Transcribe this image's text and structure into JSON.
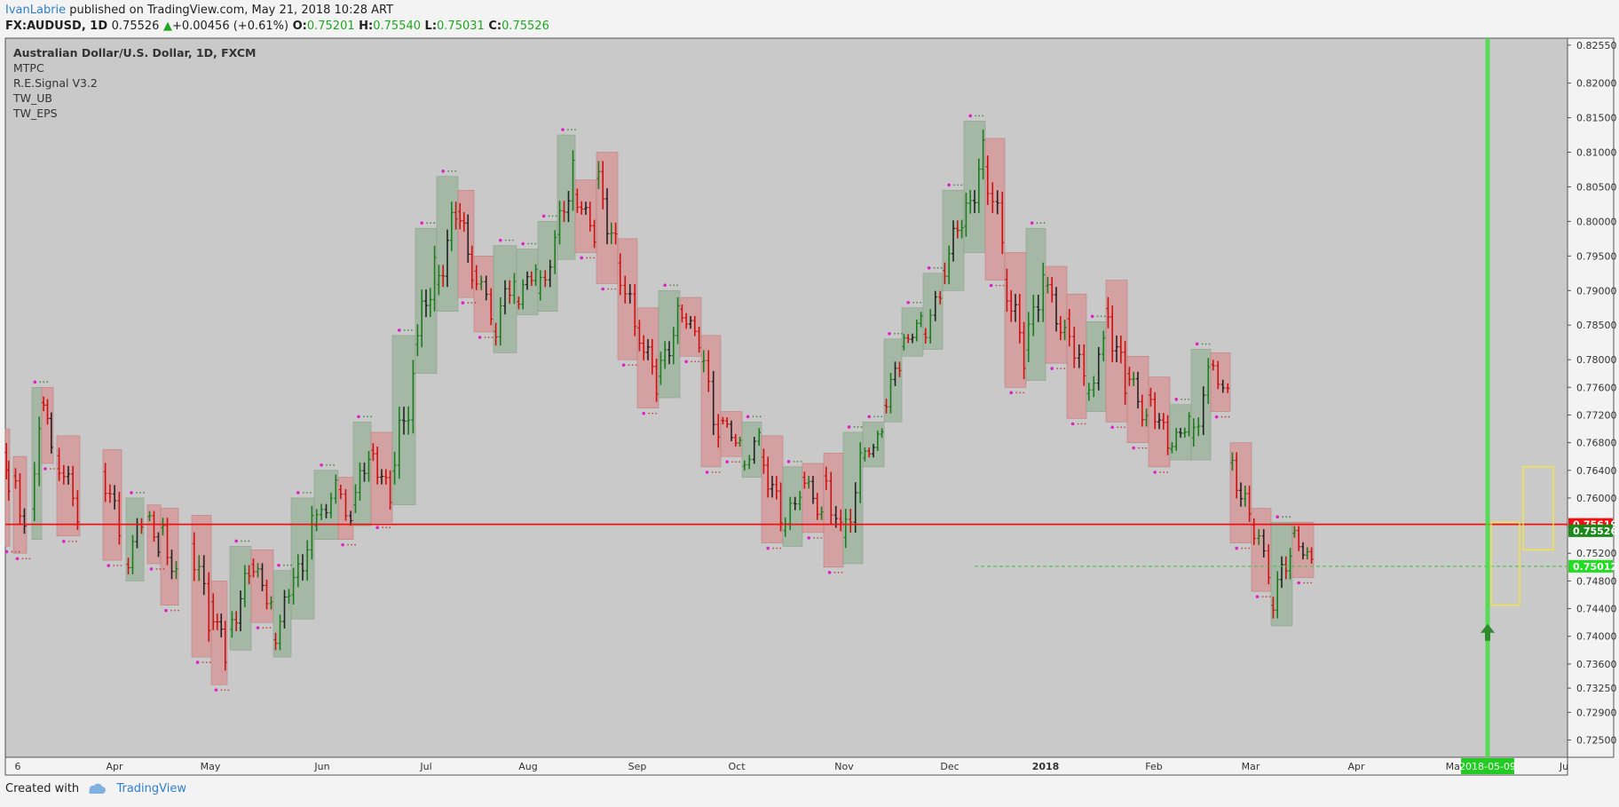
{
  "header": {
    "user": "IvanLabrie",
    "published_text": "published on TradingView.com, May 21, 2018 10:28 ART",
    "symbol": "FX:AUDUSD, 1D",
    "price": "0.75526",
    "change": "+0.00456 (+0.61%)",
    "o_label": "O:",
    "o": "0.75201",
    "h_label": "H:",
    "h": "0.75540",
    "l_label": "L:",
    "l": "0.75031",
    "c_label": "C:",
    "c": "0.75526"
  },
  "legend": {
    "title": "Australian Dollar/U.S. Dollar, 1D, FXCM",
    "indicators": [
      "MTPC",
      "R.E.Signal V3.2",
      "TW_UB",
      "TW_EPS"
    ]
  },
  "footer": {
    "created_with": "Created with",
    "brand": "TradingView"
  },
  "colors": {
    "pane_bg": "#c9c9c9",
    "bull": "#1e7a1e",
    "bear": "#cc1111",
    "box_bull": "#9fb59f",
    "box_bear": "#d59a9a",
    "marker": "#e020c8",
    "hline_red": "#ee1111",
    "highlight_green": "#44dd44",
    "yellow_box": "#f3e24c"
  },
  "chart_data": {
    "type": "candlestick",
    "title": "Australian Dollar/U.S. Dollar, 1D, FXCM",
    "ylim": [
      0.7225,
      0.8265
    ],
    "y_ticks": [
      "0.82550",
      "0.82000",
      "0.81500",
      "0.81000",
      "0.80500",
      "0.80000",
      "0.79500",
      "0.79000",
      "0.78500",
      "0.78000",
      "0.77600",
      "0.77200",
      "0.76800",
      "0.76400",
      "0.76000",
      "0.75600",
      "0.75200",
      "0.74800",
      "0.74400",
      "0.74000",
      "0.73600",
      "0.73250",
      "0.72900",
      "0.72500"
    ],
    "x_ticks": [
      "6",
      "Apr",
      "May",
      "Jun",
      "Jul",
      "Aug",
      "Sep",
      "Oct",
      "Nov",
      "Dec",
      "2018",
      "Feb",
      "Mar",
      "Apr",
      "May",
      "Ju"
    ],
    "price_labels": [
      {
        "label": "0.75619",
        "value": 0.75619,
        "color": "#ee1111"
      },
      {
        "label": "0.75526",
        "value": 0.75526,
        "color": "#1a8a1a"
      },
      {
        "label": "0.75012",
        "value": 0.75012,
        "color": "#22dd22"
      }
    ],
    "horizontal_lines": [
      {
        "value": 0.75619,
        "style": "solid",
        "color": "#ee1111"
      },
      {
        "value": 0.75012,
        "style": "dashed",
        "color": "#33cc33"
      }
    ],
    "highlighted_date": "2018-05-09",
    "series": [
      {
        "name": "AUDUSD daily",
        "shape": "rise from 0.748 to 0.810 (Sep), decline to 0.760 (Dec), peak 0.814 (Jan), fall to 0.742 (May)"
      }
    ],
    "swing_boxes": [
      {
        "bull": false,
        "x0": 0,
        "x1": 5,
        "hi": 0.77,
        "lo": 0.753
      },
      {
        "bull": false,
        "x0": 9,
        "x1": 24,
        "hi": 0.766,
        "lo": 0.752
      },
      {
        "bull": true,
        "x0": 30,
        "x1": 41,
        "hi": 0.776,
        "lo": 0.754
      },
      {
        "bull": false,
        "x0": 41,
        "x1": 54,
        "hi": 0.776,
        "lo": 0.765
      },
      {
        "bull": false,
        "x0": 58,
        "x1": 84,
        "hi": 0.769,
        "lo": 0.7545
      },
      {
        "bull": false,
        "x0": 110,
        "x1": 131,
        "hi": 0.767,
        "lo": 0.751
      },
      {
        "bull": true,
        "x0": 136,
        "x1": 156,
        "hi": 0.76,
        "lo": 0.748
      },
      {
        "bull": false,
        "x0": 160,
        "x1": 175,
        "hi": 0.759,
        "lo": 0.7505
      },
      {
        "bull": false,
        "x0": 175,
        "x1": 195,
        "hi": 0.7585,
        "lo": 0.7445
      },
      {
        "bull": false,
        "x0": 210,
        "x1": 232,
        "hi": 0.7575,
        "lo": 0.737
      },
      {
        "bull": false,
        "x0": 232,
        "x1": 250,
        "hi": 0.748,
        "lo": 0.733
      },
      {
        "bull": true,
        "x0": 253,
        "x1": 277,
        "hi": 0.753,
        "lo": 0.738
      },
      {
        "bull": false,
        "x0": 277,
        "x1": 302,
        "hi": 0.7525,
        "lo": 0.742
      },
      {
        "bull": true,
        "x0": 302,
        "x1": 322,
        "hi": 0.7495,
        "lo": 0.737
      },
      {
        "bull": true,
        "x0": 322,
        "x1": 348,
        "hi": 0.76,
        "lo": 0.7425
      },
      {
        "bull": true,
        "x0": 348,
        "x1": 375,
        "hi": 0.764,
        "lo": 0.754
      },
      {
        "bull": false,
        "x0": 375,
        "x1": 392,
        "hi": 0.763,
        "lo": 0.754
      },
      {
        "bull": true,
        "x0": 392,
        "x1": 412,
        "hi": 0.771,
        "lo": 0.756
      },
      {
        "bull": false,
        "x0": 412,
        "x1": 436,
        "hi": 0.7695,
        "lo": 0.7565
      },
      {
        "bull": true,
        "x0": 436,
        "x1": 462,
        "hi": 0.7835,
        "lo": 0.759
      },
      {
        "bull": true,
        "x0": 462,
        "x1": 486,
        "hi": 0.799,
        "lo": 0.778
      },
      {
        "bull": true,
        "x0": 486,
        "x1": 510,
        "hi": 0.8065,
        "lo": 0.787
      },
      {
        "bull": false,
        "x0": 510,
        "x1": 528,
        "hi": 0.8045,
        "lo": 0.789
      },
      {
        "bull": false,
        "x0": 528,
        "x1": 550,
        "hi": 0.795,
        "lo": 0.784
      },
      {
        "bull": true,
        "x0": 550,
        "x1": 576,
        "hi": 0.7965,
        "lo": 0.781
      },
      {
        "bull": true,
        "x0": 576,
        "x1": 600,
        "hi": 0.796,
        "lo": 0.7865
      },
      {
        "bull": true,
        "x0": 600,
        "x1": 622,
        "hi": 0.8,
        "lo": 0.787
      },
      {
        "bull": true,
        "x0": 622,
        "x1": 642,
        "hi": 0.8125,
        "lo": 0.7945
      },
      {
        "bull": false,
        "x0": 642,
        "x1": 666,
        "hi": 0.806,
        "lo": 0.7955
      },
      {
        "bull": false,
        "x0": 666,
        "x1": 690,
        "hi": 0.81,
        "lo": 0.791
      },
      {
        "bull": false,
        "x0": 690,
        "x1": 712,
        "hi": 0.7975,
        "lo": 0.78
      },
      {
        "bull": false,
        "x0": 712,
        "x1": 736,
        "hi": 0.7875,
        "lo": 0.773
      },
      {
        "bull": true,
        "x0": 736,
        "x1": 760,
        "hi": 0.79,
        "lo": 0.7745
      },
      {
        "bull": false,
        "x0": 760,
        "x1": 784,
        "hi": 0.789,
        "lo": 0.7805
      },
      {
        "bull": false,
        "x0": 784,
        "x1": 806,
        "hi": 0.7835,
        "lo": 0.7645
      },
      {
        "bull": false,
        "x0": 806,
        "x1": 830,
        "hi": 0.7725,
        "lo": 0.766
      },
      {
        "bull": true,
        "x0": 830,
        "x1": 852,
        "hi": 0.771,
        "lo": 0.763
      },
      {
        "bull": false,
        "x0": 852,
        "x1": 876,
        "hi": 0.769,
        "lo": 0.7535
      },
      {
        "bull": true,
        "x0": 876,
        "x1": 898,
        "hi": 0.7645,
        "lo": 0.753
      },
      {
        "bull": false,
        "x0": 898,
        "x1": 922,
        "hi": 0.765,
        "lo": 0.755
      },
      {
        "bull": false,
        "x0": 922,
        "x1": 944,
        "hi": 0.7665,
        "lo": 0.75
      },
      {
        "bull": true,
        "x0": 944,
        "x1": 966,
        "hi": 0.7695,
        "lo": 0.7505
      },
      {
        "bull": true,
        "x0": 966,
        "x1": 990,
        "hi": 0.771,
        "lo": 0.7645
      },
      {
        "bull": true,
        "x0": 990,
        "x1": 1010,
        "hi": 0.783,
        "lo": 0.771
      },
      {
        "bull": true,
        "x0": 1010,
        "x1": 1034,
        "hi": 0.7875,
        "lo": 0.7805
      },
      {
        "bull": true,
        "x0": 1034,
        "x1": 1056,
        "hi": 0.7925,
        "lo": 0.7815
      },
      {
        "bull": true,
        "x0": 1056,
        "x1": 1080,
        "hi": 0.8045,
        "lo": 0.79
      },
      {
        "bull": true,
        "x0": 1080,
        "x1": 1104,
        "hi": 0.8145,
        "lo": 0.7955
      },
      {
        "bull": false,
        "x0": 1104,
        "x1": 1126,
        "hi": 0.812,
        "lo": 0.7915
      },
      {
        "bull": false,
        "x0": 1126,
        "x1": 1150,
        "hi": 0.7955,
        "lo": 0.776
      },
      {
        "bull": true,
        "x0": 1150,
        "x1": 1172,
        "hi": 0.799,
        "lo": 0.777
      },
      {
        "bull": false,
        "x0": 1172,
        "x1": 1196,
        "hi": 0.7935,
        "lo": 0.7795
      },
      {
        "bull": false,
        "x0": 1196,
        "x1": 1218,
        "hi": 0.7895,
        "lo": 0.7715
      },
      {
        "bull": true,
        "x0": 1218,
        "x1": 1240,
        "hi": 0.7855,
        "lo": 0.7725
      },
      {
        "bull": false,
        "x0": 1240,
        "x1": 1264,
        "hi": 0.7915,
        "lo": 0.771
      },
      {
        "bull": false,
        "x0": 1264,
        "x1": 1288,
        "hi": 0.7805,
        "lo": 0.768
      },
      {
        "bull": false,
        "x0": 1288,
        "x1": 1312,
        "hi": 0.7775,
        "lo": 0.7645
      },
      {
        "bull": true,
        "x0": 1312,
        "x1": 1336,
        "hi": 0.7735,
        "lo": 0.7655
      },
      {
        "bull": true,
        "x0": 1336,
        "x1": 1358,
        "hi": 0.7815,
        "lo": 0.7655
      },
      {
        "bull": false,
        "x0": 1358,
        "x1": 1380,
        "hi": 0.781,
        "lo": 0.7725
      },
      {
        "bull": false,
        "x0": 1380,
        "x1": 1404,
        "hi": 0.768,
        "lo": 0.7535
      },
      {
        "bull": false,
        "x0": 1404,
        "x1": 1426,
        "hi": 0.7585,
        "lo": 0.7465
      },
      {
        "bull": true,
        "x0": 1426,
        "x1": 1450,
        "hi": 0.7565,
        "lo": 0.7415
      },
      {
        "bull": false,
        "x0": 1450,
        "x1": 1474,
        "hi": 0.7565,
        "lo": 0.7485
      }
    ]
  }
}
